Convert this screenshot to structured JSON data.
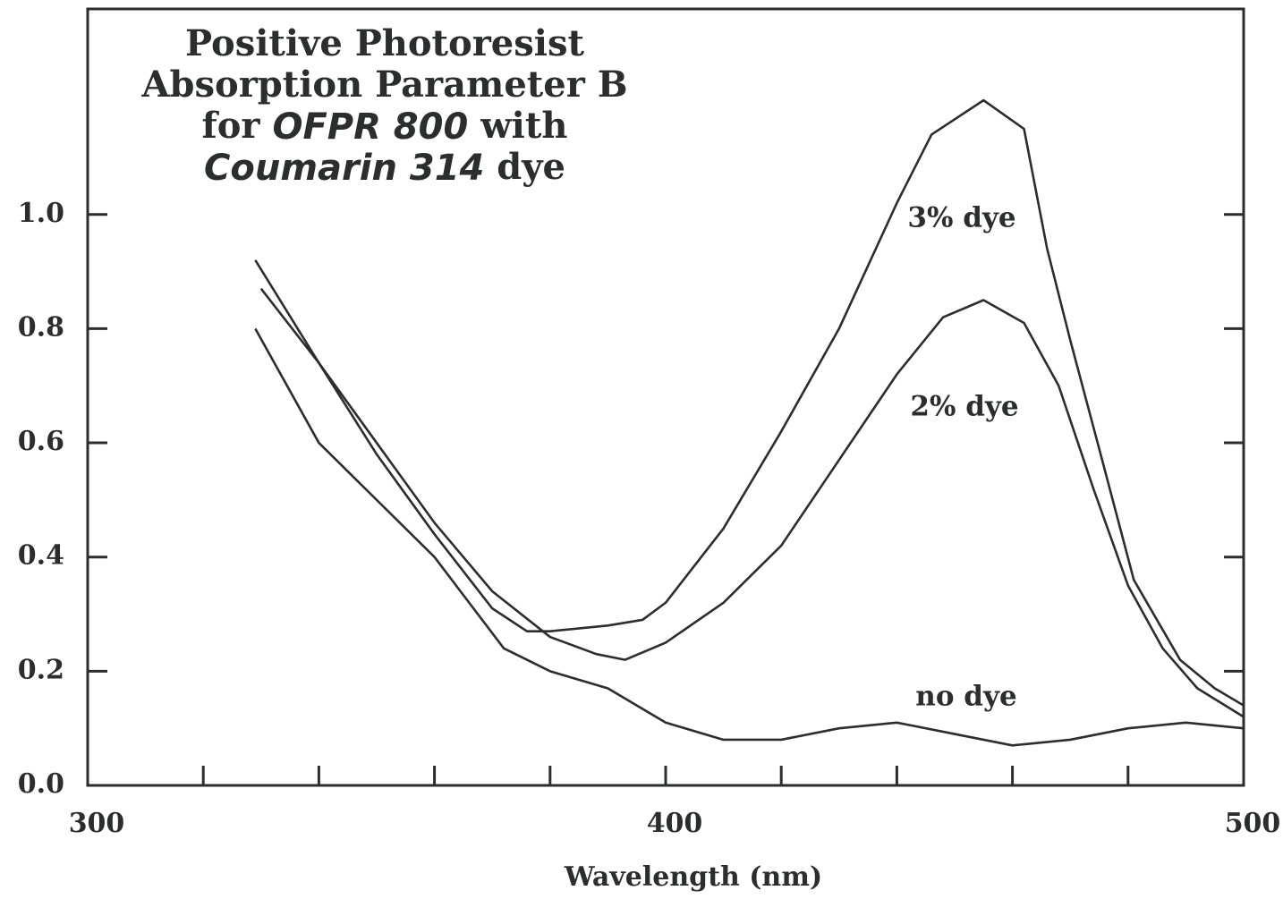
{
  "chart_data": {
    "type": "line",
    "title": [
      [
        {
          "text": "Positive Photoresist"
        }
      ],
      [
        {
          "text": "Absorption Parameter B"
        }
      ],
      [
        {
          "text": "for "
        },
        {
          "text": "OFPR 800",
          "italic": true
        },
        {
          "text": " with"
        }
      ],
      [
        {
          "text": "Coumarin 314",
          "italic": true
        },
        {
          "text": " dye"
        }
      ]
    ],
    "x_label": "Wavelength (nm)",
    "xlim": [
      300,
      500
    ],
    "xticks": [
      300,
      400,
      500
    ],
    "x_minor_ticks": [
      320,
      340,
      360,
      380,
      420,
      440,
      460,
      480
    ],
    "ylim": [
      0,
      1.36
    ],
    "yticks": [
      {
        "value": 0,
        "label": "0.0"
      },
      {
        "value": 0.2,
        "label": "0.2"
      },
      {
        "value": 0.4,
        "label": "0.4"
      },
      {
        "value": 0.6,
        "label": "0.6"
      },
      {
        "value": 0.8,
        "label": "0.8"
      },
      {
        "value": 1,
        "label": "1.0"
      }
    ],
    "grid": false,
    "series": [
      {
        "name": "3% dye",
        "color": "#2b2f2b",
        "x": [
          329,
          340,
          350,
          360,
          370,
          376,
          380,
          390,
          396,
          400,
          410,
          420,
          430,
          440,
          446,
          455,
          462,
          466,
          470,
          475,
          481,
          489,
          495,
          500
        ],
        "values": [
          0.92,
          0.74,
          0.58,
          0.44,
          0.31,
          0.27,
          0.27,
          0.28,
          0.29,
          0.32,
          0.45,
          0.62,
          0.8,
          1.02,
          1.14,
          1.2,
          1.15,
          0.94,
          0.78,
          0.59,
          0.36,
          0.22,
          0.17,
          0.14
        ]
      },
      {
        "name": "2% dye",
        "color": "#2b2f2b",
        "x": [
          330,
          340,
          350,
          360,
          370,
          380,
          388,
          393,
          400,
          410,
          420,
          430,
          440,
          448,
          455,
          462,
          468,
          474,
          480,
          486,
          492,
          500
        ],
        "values": [
          0.87,
          0.74,
          0.6,
          0.46,
          0.34,
          0.26,
          0.23,
          0.22,
          0.25,
          0.32,
          0.42,
          0.57,
          0.72,
          0.82,
          0.85,
          0.81,
          0.7,
          0.52,
          0.35,
          0.24,
          0.17,
          0.12
        ]
      },
      {
        "name": "no dye",
        "color": "#2b2f2b",
        "x": [
          329,
          340,
          350,
          360,
          366,
          372,
          380,
          390,
          400,
          410,
          420,
          430,
          440,
          450,
          460,
          470,
          480,
          490,
          500
        ],
        "values": [
          0.8,
          0.6,
          0.5,
          0.4,
          0.32,
          0.24,
          0.2,
          0.17,
          0.11,
          0.08,
          0.08,
          0.1,
          0.11,
          0.09,
          0.07,
          0.08,
          0.1,
          0.11,
          0.1
        ]
      }
    ]
  }
}
